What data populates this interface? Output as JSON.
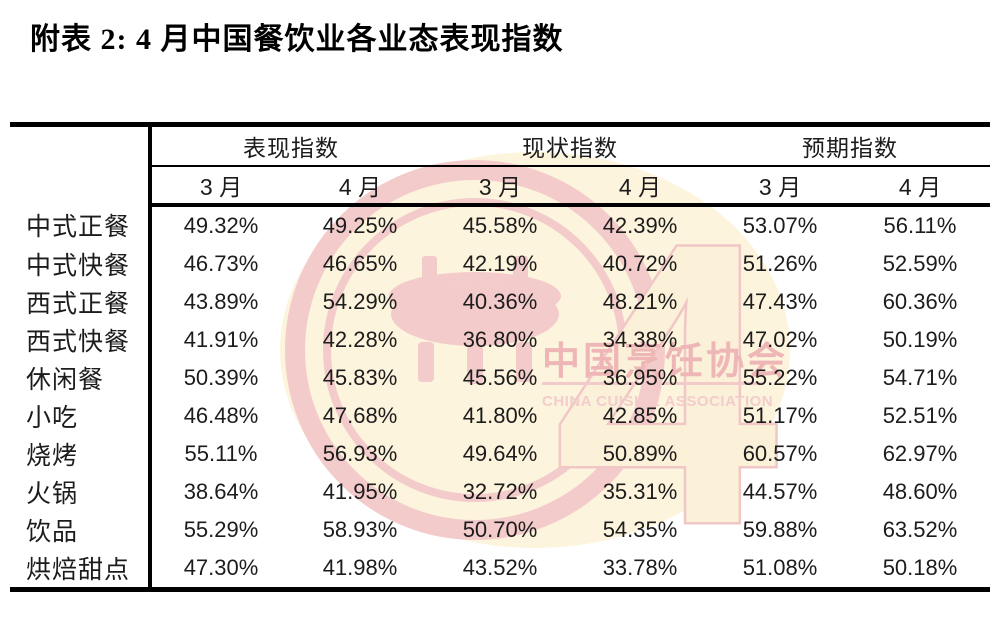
{
  "title": "附表 2: 4 月中国餐饮业各业态表现指数",
  "table": {
    "groups": [
      {
        "label": "表现指数"
      },
      {
        "label": "现状指数"
      },
      {
        "label": "预期指数"
      }
    ],
    "month_headers": [
      "3 月",
      "4 月",
      "3 月",
      "4 月",
      "3 月",
      "4 月"
    ],
    "rows": [
      {
        "label": "中式正餐",
        "values": [
          "49.32%",
          "49.25%",
          "45.58%",
          "42.39%",
          "53.07%",
          "56.11%"
        ]
      },
      {
        "label": "中式快餐",
        "values": [
          "46.73%",
          "46.65%",
          "42.19%",
          "40.72%",
          "51.26%",
          "52.59%"
        ]
      },
      {
        "label": "西式正餐",
        "values": [
          "43.89%",
          "54.29%",
          "40.36%",
          "48.21%",
          "47.43%",
          "60.36%"
        ]
      },
      {
        "label": "西式快餐",
        "values": [
          "41.91%",
          "42.28%",
          "36.80%",
          "34.38%",
          "47.02%",
          "50.19%"
        ]
      },
      {
        "label": "休闲餐",
        "values": [
          "50.39%",
          "45.83%",
          "45.56%",
          "36.95%",
          "55.22%",
          "54.71%"
        ]
      },
      {
        "label": "小吃",
        "values": [
          "46.48%",
          "47.68%",
          "41.80%",
          "42.85%",
          "51.17%",
          "52.51%"
        ]
      },
      {
        "label": "烧烤",
        "values": [
          "55.11%",
          "56.93%",
          "49.64%",
          "50.89%",
          "60.57%",
          "62.97%"
        ]
      },
      {
        "label": "火锅",
        "values": [
          "38.64%",
          "41.95%",
          "32.72%",
          "35.31%",
          "44.57%",
          "48.60%"
        ]
      },
      {
        "label": "饮品",
        "values": [
          "55.29%",
          "58.93%",
          "50.70%",
          "54.35%",
          "59.88%",
          "63.52%"
        ]
      },
      {
        "label": "烘焙甜点",
        "values": [
          "47.30%",
          "41.98%",
          "43.52%",
          "33.78%",
          "51.08%",
          "50.18%"
        ]
      }
    ]
  },
  "watermark": {
    "organization_cn": "中国烹饪协会",
    "organization_en": "CHINA CUISINE ASSOCIATION",
    "numeral": "4",
    "colors": {
      "pink": "#f2c8c8",
      "cream": "#fdf4dd",
      "text_pink": "#eeb6b6"
    }
  }
}
